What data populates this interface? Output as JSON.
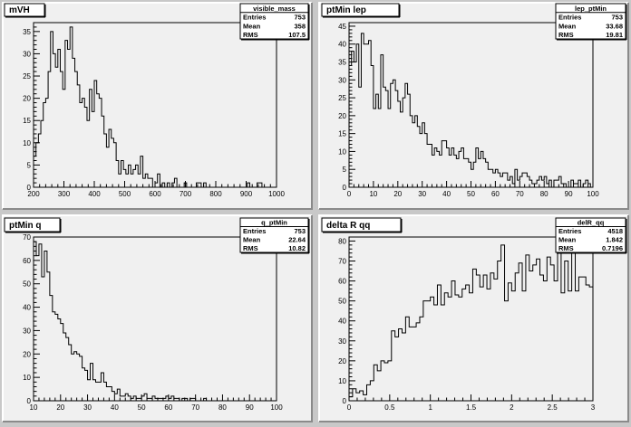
{
  "chart_data": [
    {
      "type": "bar",
      "title": "mVH",
      "stats": {
        "name": "visible_mass",
        "rows": [
          [
            "Entries",
            "753"
          ],
          [
            "Mean",
            "358"
          ],
          [
            "RMS",
            "107.5"
          ]
        ]
      },
      "xlim": [
        200,
        1000
      ],
      "ylim": [
        0,
        37
      ],
      "xticks": [
        200,
        300,
        400,
        500,
        600,
        700,
        800,
        900,
        1000
      ],
      "yticks": [
        0,
        5,
        10,
        15,
        20,
        25,
        30,
        35
      ],
      "values": [
        7,
        10,
        12,
        15,
        19,
        20,
        26,
        35,
        30,
        27,
        31,
        26,
        22,
        33,
        31,
        36,
        29,
        26,
        23,
        19,
        20,
        18,
        15,
        22,
        17,
        24,
        21,
        20,
        16,
        12,
        9,
        13,
        11,
        10,
        6,
        3,
        6,
        4,
        3,
        5,
        3,
        4,
        5,
        3,
        7,
        2,
        3,
        2,
        2,
        0,
        1,
        3,
        0,
        1,
        0,
        1,
        0,
        1,
        2,
        0,
        0,
        0,
        1,
        0,
        0,
        0,
        0,
        1,
        1,
        0,
        1,
        0,
        0,
        0,
        0,
        0,
        0,
        0,
        0,
        0,
        0,
        0,
        0,
        0,
        0,
        0,
        0,
        0,
        1,
        0,
        0,
        0,
        1,
        1,
        0,
        0,
        0,
        0,
        0,
        0
      ]
    },
    {
      "type": "bar",
      "title": "ptMin lep",
      "stats": {
        "name": "lep_ptMin",
        "rows": [
          [
            "Entries",
            "753"
          ],
          [
            "Mean",
            "33.68"
          ],
          [
            "RMS",
            "19.81"
          ]
        ]
      },
      "xlim": [
        0,
        100
      ],
      "ylim": [
        0,
        46
      ],
      "xticks": [
        0,
        10,
        20,
        30,
        40,
        50,
        60,
        70,
        80,
        90,
        100
      ],
      "yticks": [
        0,
        5,
        10,
        15,
        20,
        25,
        30,
        35,
        40,
        45
      ],
      "values": [
        34,
        38,
        35,
        40,
        28,
        43,
        40,
        40,
        41,
        34,
        22,
        26,
        22,
        37,
        28,
        27,
        22,
        29,
        30,
        27,
        24,
        21,
        25,
        29,
        26,
        20,
        18,
        20,
        17,
        15,
        18,
        15,
        12,
        12,
        9,
        11,
        10,
        9,
        13,
        13,
        11,
        9,
        11,
        9,
        8,
        10,
        11,
        8,
        8,
        7,
        5,
        7,
        11,
        8,
        10,
        8,
        7,
        5,
        5,
        4,
        5,
        4,
        3,
        4,
        4,
        2,
        3,
        1,
        5,
        2,
        3,
        4,
        4,
        3,
        2,
        1,
        1,
        2,
        3,
        2,
        3,
        1,
        2,
        0,
        2,
        2,
        3,
        1,
        1,
        0,
        0,
        2,
        1,
        1,
        2,
        0,
        1,
        2,
        1,
        0
      ]
    },
    {
      "type": "bar",
      "title": "ptMin q",
      "stats": {
        "name": "q_ptMin",
        "rows": [
          [
            "Entries",
            "753"
          ],
          [
            "Mean",
            "22.64"
          ],
          [
            "RMS",
            "10.82"
          ]
        ]
      },
      "xlim": [
        10,
        100
      ],
      "ylim": [
        0,
        70
      ],
      "xticks": [
        10,
        20,
        30,
        40,
        50,
        60,
        70,
        80,
        90,
        100
      ],
      "yticks": [
        0,
        10,
        20,
        30,
        40,
        50,
        60,
        70
      ],
      "values": [
        68,
        62,
        67,
        53,
        64,
        55,
        45,
        38,
        37,
        35,
        33,
        29,
        27,
        24,
        20,
        21,
        20,
        19,
        14,
        13,
        9,
        16,
        9,
        8,
        8,
        12,
        8,
        6,
        6,
        4,
        3,
        5,
        2,
        2,
        3,
        2,
        1,
        2,
        1,
        1,
        2,
        3,
        1,
        1,
        2,
        1,
        1,
        1,
        1,
        2,
        1,
        2,
        1,
        1,
        0,
        1,
        1,
        0,
        1,
        1,
        0,
        0,
        0,
        1,
        0,
        0,
        0,
        0,
        0,
        0,
        0,
        0,
        0,
        0,
        0,
        0,
        0,
        0,
        0,
        0,
        0,
        0,
        0,
        0,
        0,
        0,
        0,
        0,
        0,
        0
      ]
    },
    {
      "type": "bar",
      "title": "delta R qq",
      "stats": {
        "name": "delR_qq",
        "rows": [
          [
            "Entries",
            "4518"
          ],
          [
            "Mean",
            "1.842"
          ],
          [
            "RMS",
            "0.7196"
          ]
        ]
      },
      "xlim": [
        0,
        3
      ],
      "ylim": [
        0,
        82
      ],
      "xticks": [
        0,
        0.5,
        1,
        1.5,
        2,
        2.5,
        3
      ],
      "ytickLabels": [
        0,
        10,
        20,
        30,
        40,
        50,
        60,
        70,
        80
      ],
      "values": [
        2,
        6,
        4,
        5,
        3,
        8,
        10,
        18,
        15,
        20,
        19,
        20,
        35,
        32,
        36,
        34,
        42,
        37,
        37,
        39,
        42,
        50,
        50,
        52,
        48,
        58,
        48,
        54,
        52,
        60,
        53,
        52,
        56,
        58,
        54,
        66,
        63,
        57,
        63,
        56,
        64,
        61,
        70,
        78,
        50,
        59,
        55,
        64,
        69,
        55,
        73,
        65,
        68,
        71,
        63,
        60,
        72,
        68,
        60,
        74,
        54,
        70,
        55,
        78,
        55,
        62,
        62,
        58,
        57
      ]
    }
  ]
}
